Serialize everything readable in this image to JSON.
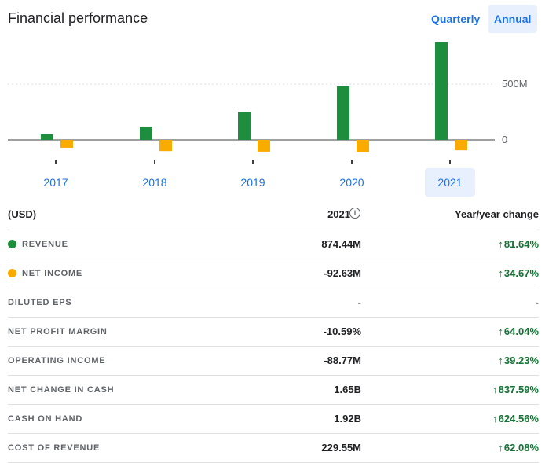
{
  "header": {
    "title": "Financial performance",
    "quarterly_label": "Quarterly",
    "annual_label": "Annual"
  },
  "colors": {
    "revenue": "#1e8e3e",
    "net_income": "#f9ab00",
    "accent": "#1a73e8",
    "positive": "#137333"
  },
  "chart_data": {
    "type": "bar",
    "categories": [
      "2017",
      "2018",
      "2019",
      "2020",
      "2021"
    ],
    "series": [
      {
        "name": "REVENUE",
        "values": [
          50,
          120,
          250,
          480,
          874.44
        ]
      },
      {
        "name": "NET INCOME",
        "values": [
          -70,
          -100,
          -105,
          -110,
          -92.63
        ]
      }
    ],
    "y_ticks": [
      "500M",
      "0"
    ],
    "y_tick_values": [
      500,
      0
    ],
    "selected_category": "2021"
  },
  "table": {
    "col_label": "(USD)",
    "col_value": "2021",
    "col_change": "Year/year change",
    "rows": [
      {
        "label": "REVENUE",
        "value": "874.44M",
        "change": "81.64%",
        "dot": "revenue"
      },
      {
        "label": "NET INCOME",
        "value": "-92.63M",
        "change": "34.67%",
        "dot": "net_income"
      },
      {
        "label": "DILUTED EPS",
        "value": "-",
        "change": "-"
      },
      {
        "label": "NET PROFIT MARGIN",
        "value": "-10.59%",
        "change": "64.04%"
      },
      {
        "label": "OPERATING INCOME",
        "value": "-88.77M",
        "change": "39.23%"
      },
      {
        "label": "NET CHANGE IN CASH",
        "value": "1.65B",
        "change": "837.59%"
      },
      {
        "label": "CASH ON HAND",
        "value": "1.92B",
        "change": "624.56%"
      },
      {
        "label": "COST OF REVENUE",
        "value": "229.55M",
        "change": "62.08%"
      }
    ]
  }
}
